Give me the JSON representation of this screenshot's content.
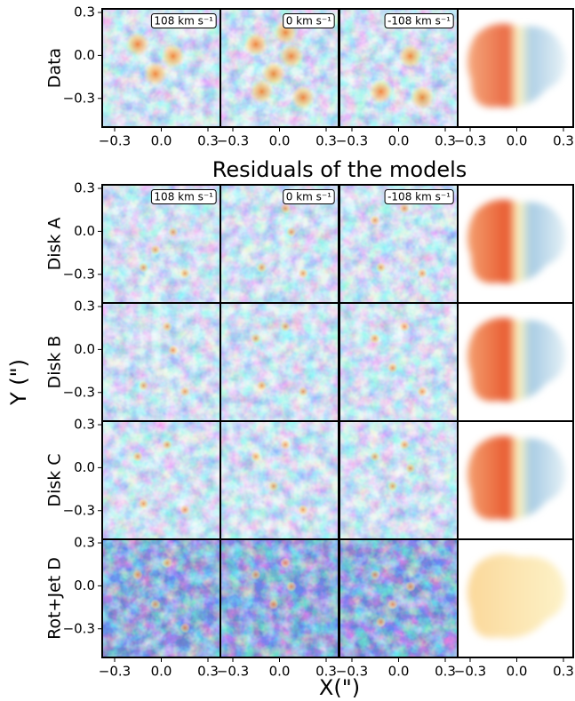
{
  "figure": {
    "title": "Residuals of the models",
    "xlabel": "X(\")",
    "ylabel": "Y (\")",
    "rows": [
      "Data",
      "Disk A",
      "Disk B",
      "Disk C",
      "Rot+Jet D"
    ],
    "velocity_labels": [
      "108 km s⁻¹",
      "0 km s⁻¹",
      "-108 km s⁻¹"
    ],
    "xlim": [
      -0.38,
      0.38
    ],
    "ylim": [
      -0.5,
      0.325
    ],
    "xticks": [
      {
        "value": -0.3,
        "label": "−0.3"
      },
      {
        "value": 0,
        "label": "0.0"
      },
      {
        "value": 0.3,
        "label": "0.3"
      }
    ],
    "yticks": [
      {
        "value": 0.3,
        "label": "0.3"
      },
      {
        "value": 0,
        "label": "0.0"
      },
      {
        "value": -0.3,
        "label": "−0.3"
      }
    ]
  }
}
